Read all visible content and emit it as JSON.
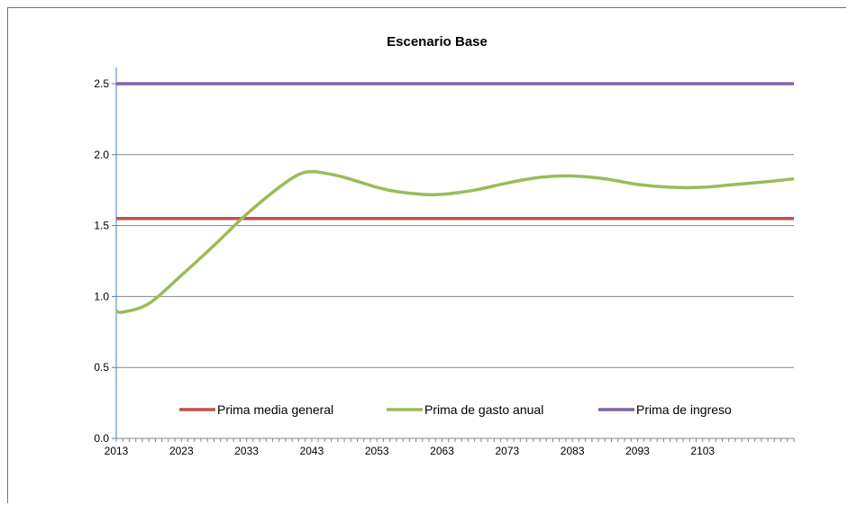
{
  "chart_data": {
    "type": "line",
    "title": "Escenario Base",
    "xlabel": "",
    "ylabel": "",
    "xlim": [
      2013,
      2117
    ],
    "ylim": [
      0,
      2.5
    ],
    "yticks": [
      "0.0",
      "0.5",
      "1.0",
      "1.5",
      "2.0",
      "2.5"
    ],
    "xticks": [
      "2013",
      "2023",
      "2033",
      "2043",
      "2053",
      "2063",
      "2073",
      "2083",
      "2093",
      "2103"
    ],
    "grid": "horizontal",
    "legend_position": "bottom",
    "series": [
      {
        "name": "Prima media general",
        "color": "#c0504d",
        "x": [
          2013,
          2117
        ],
        "y": [
          1.55,
          1.55
        ]
      },
      {
        "name": "Prima de gasto anual",
        "color": "#9bbb59",
        "x": [
          2013,
          2014,
          2018,
          2023,
          2028,
          2033,
          2038,
          2041,
          2043,
          2045,
          2048,
          2053,
          2056,
          2060,
          2063,
          2068,
          2073,
          2078,
          2083,
          2088,
          2093,
          2098,
          2103,
          2108,
          2113,
          2117
        ],
        "y": [
          0.9,
          0.89,
          0.95,
          1.15,
          1.36,
          1.58,
          1.77,
          1.86,
          1.88,
          1.87,
          1.84,
          1.77,
          1.74,
          1.72,
          1.72,
          1.75,
          1.8,
          1.84,
          1.85,
          1.83,
          1.79,
          1.77,
          1.77,
          1.79,
          1.81,
          1.83
        ]
      },
      {
        "name": "Prima de ingreso",
        "color": "#8064a2",
        "x": [
          2013,
          2117
        ],
        "y": [
          2.5,
          2.5
        ]
      }
    ]
  }
}
